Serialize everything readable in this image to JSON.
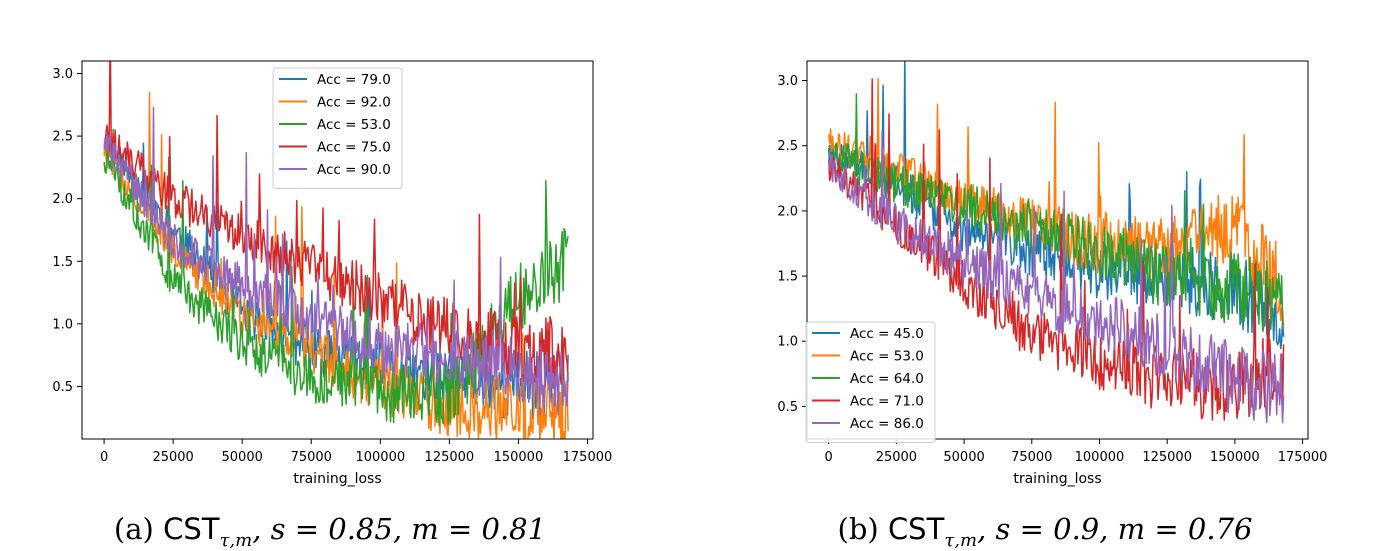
{
  "chart_data": [
    {
      "type": "line",
      "xlabel": "training_loss",
      "ylabel": "",
      "xlim": [
        -8000,
        177000
      ],
      "ylim": [
        0.08,
        3.1
      ],
      "xticks": [
        0,
        25000,
        50000,
        75000,
        100000,
        125000,
        150000,
        175000
      ],
      "yticks": [
        0.5,
        1.0,
        1.5,
        2.0,
        2.5,
        3.0
      ],
      "xtick_labels": [
        "0",
        "25000",
        "50000",
        "75000",
        "100000",
        "125000",
        "150000",
        "175000"
      ],
      "ytick_labels": [
        "0.5",
        "1.0",
        "1.5",
        "2.0",
        "2.5",
        "3.0"
      ],
      "legend": "upper-center",
      "caption": {
        "prefix": "(a) ",
        "cst": "CST",
        "sub": "τ,m",
        "rest": ", s = 0.85, m = 0.81"
      },
      "series": [
        {
          "name": "Acc = 79.0",
          "color": "#1f77b4",
          "x": [
            0,
            25000,
            50000,
            75000,
            100000,
            125000,
            150000,
            168000
          ],
          "y": [
            2.45,
            1.75,
            1.1,
            0.8,
            0.62,
            0.55,
            0.52,
            0.5
          ]
        },
        {
          "name": "Acc = 92.0",
          "color": "#ff7f0e",
          "x": [
            0,
            25000,
            50000,
            75000,
            100000,
            125000,
            150000,
            168000
          ],
          "y": [
            2.4,
            1.6,
            1.05,
            0.8,
            0.5,
            0.35,
            0.3,
            0.25
          ]
        },
        {
          "name": "Acc = 53.0",
          "color": "#2ca02c",
          "x": [
            0,
            25000,
            50000,
            75000,
            100000,
            125000,
            150000,
            168000
          ],
          "y": [
            2.35,
            1.35,
            0.85,
            0.55,
            0.45,
            0.42,
            1.2,
            1.5
          ]
        },
        {
          "name": "Acc = 75.0",
          "color": "#d62728",
          "x": [
            0,
            25000,
            50000,
            75000,
            100000,
            125000,
            150000,
            168000
          ],
          "y": [
            2.5,
            2.0,
            1.7,
            1.45,
            1.2,
            0.95,
            0.8,
            0.72
          ]
        },
        {
          "name": "Acc = 90.0",
          "color": "#9467bd",
          "x": [
            0,
            25000,
            50000,
            75000,
            100000,
            125000,
            150000,
            168000
          ],
          "y": [
            2.45,
            1.65,
            1.3,
            1.05,
            0.8,
            0.75,
            0.6,
            0.5
          ]
        }
      ]
    },
    {
      "type": "line",
      "xlabel": "training_loss",
      "ylabel": "",
      "xlim": [
        -8000,
        177000
      ],
      "ylim": [
        0.25,
        3.15
      ],
      "xticks": [
        0,
        25000,
        50000,
        75000,
        100000,
        125000,
        150000,
        175000
      ],
      "yticks": [
        0.5,
        1.0,
        1.5,
        2.0,
        2.5,
        3.0
      ],
      "xtick_labels": [
        "0",
        "25000",
        "50000",
        "75000",
        "100000",
        "125000",
        "150000",
        "175000"
      ],
      "ytick_labels": [
        "0.5",
        "1.0",
        "1.5",
        "2.0",
        "2.5",
        "3.0"
      ],
      "legend": "lower-left",
      "caption": {
        "prefix": "(b) ",
        "cst": "CST",
        "sub": "τ,m",
        "rest": ", s = 0.9, m = 0.76"
      },
      "series": [
        {
          "name": "Acc = 45.0",
          "color": "#1f77b4",
          "x": [
            0,
            25000,
            50000,
            75000,
            100000,
            125000,
            150000,
            168000
          ],
          "y": [
            2.45,
            2.2,
            1.85,
            1.7,
            1.55,
            1.5,
            1.4,
            1.2
          ]
        },
        {
          "name": "Acc = 53.0",
          "color": "#ff7f0e",
          "x": [
            0,
            25000,
            50000,
            75000,
            100000,
            125000,
            150000,
            168000
          ],
          "y": [
            2.55,
            2.3,
            2.1,
            1.9,
            1.75,
            1.7,
            1.9,
            1.4
          ]
        },
        {
          "name": "Acc = 64.0",
          "color": "#2ca02c",
          "x": [
            0,
            25000,
            50000,
            75000,
            100000,
            125000,
            150000,
            168000
          ],
          "y": [
            2.45,
            2.2,
            2.05,
            1.85,
            1.7,
            1.5,
            1.4,
            1.3
          ]
        },
        {
          "name": "Acc = 71.0",
          "color": "#d62728",
          "x": [
            0,
            25000,
            50000,
            75000,
            100000,
            125000,
            150000,
            168000
          ],
          "y": [
            2.35,
            1.9,
            1.45,
            1.05,
            0.85,
            0.7,
            0.65,
            0.8
          ]
        },
        {
          "name": "Acc = 86.0",
          "color": "#9467bd",
          "x": [
            0,
            25000,
            50000,
            75000,
            100000,
            125000,
            150000,
            168000
          ],
          "y": [
            2.35,
            1.9,
            1.6,
            1.35,
            1.15,
            0.95,
            0.7,
            0.6
          ]
        }
      ]
    }
  ]
}
